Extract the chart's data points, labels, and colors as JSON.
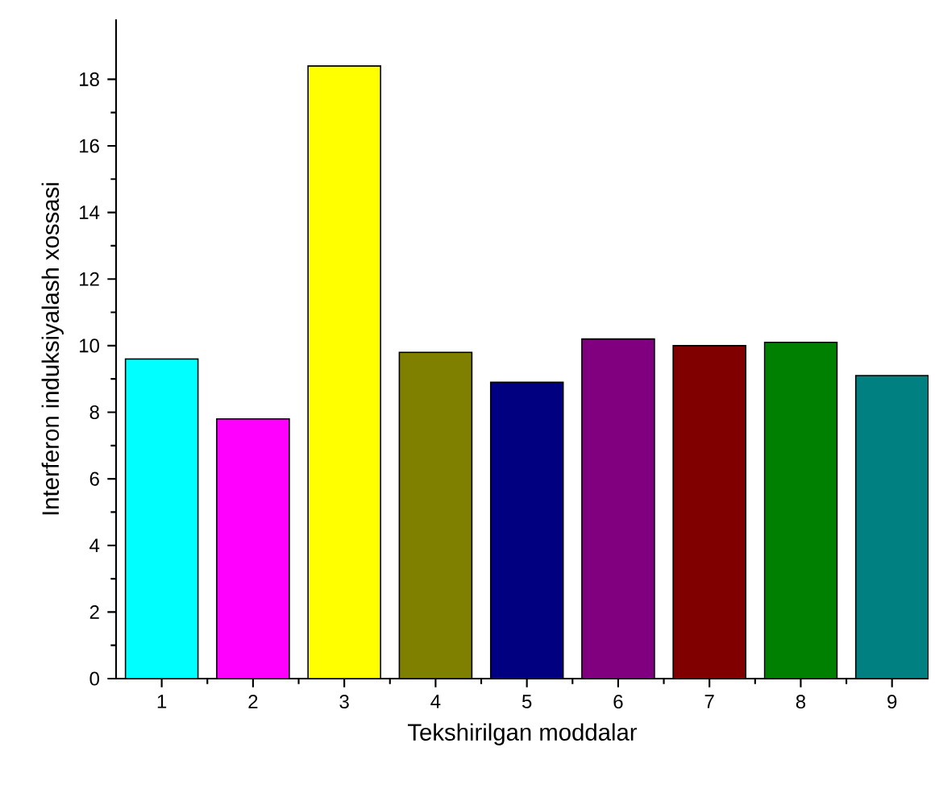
{
  "chart_data": {
    "type": "bar",
    "xlabel": "Tekshirilgan moddalar",
    "ylabel": "Interferon induksiyalash xossasi",
    "categories": [
      "1",
      "2",
      "3",
      "4",
      "5",
      "6",
      "7",
      "8",
      "9"
    ],
    "values": [
      9.6,
      7.8,
      18.4,
      9.8,
      8.9,
      10.2,
      10.0,
      10.1,
      9.1
    ],
    "colors": [
      "#00ffff",
      "#ff00ff",
      "#ffff00",
      "#808000",
      "#000080",
      "#800080",
      "#800000",
      "#008000",
      "#008080"
    ],
    "ylim": [
      0,
      19.8
    ],
    "yticks": [
      0,
      2,
      4,
      6,
      8,
      10,
      12,
      14,
      16,
      18
    ],
    "grid": false
  }
}
